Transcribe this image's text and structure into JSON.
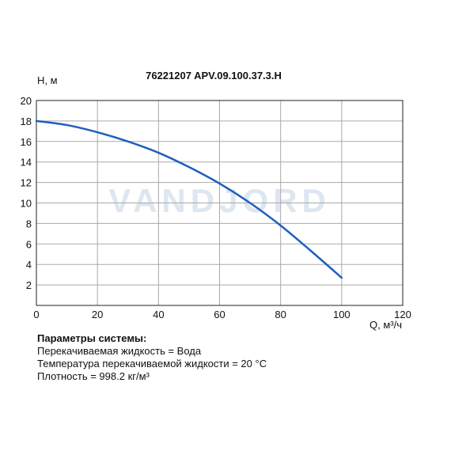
{
  "chart_data": {
    "type": "line",
    "title": "76221207 APV.09.100.37.3.H",
    "ylabel": "H, м",
    "xlabel": "Q, м³/ч",
    "xlim": [
      0,
      120
    ],
    "ylim": [
      0,
      20
    ],
    "x_ticks": [
      0,
      20,
      40,
      60,
      80,
      100,
      120
    ],
    "y_ticks": [
      2,
      4,
      6,
      8,
      10,
      12,
      14,
      16,
      18,
      20
    ],
    "grid": true,
    "watermark": "VANDJORD",
    "series": [
      {
        "color": "#1f5fbf",
        "x": [
          0,
          10,
          20,
          30,
          40,
          50,
          60,
          70,
          80,
          90,
          100
        ],
        "y": [
          18.0,
          17.6,
          16.9,
          16.0,
          14.9,
          13.5,
          11.9,
          10.0,
          7.8,
          5.3,
          2.7
        ]
      }
    ]
  },
  "params": {
    "heading": "Параметры системы:",
    "liquid": "Перекачиваемая жидкость = Вода",
    "temperature": "Температура перекачиваемой жидкости = 20 °C",
    "density": "Плотность = 998.2 кг/м³"
  }
}
